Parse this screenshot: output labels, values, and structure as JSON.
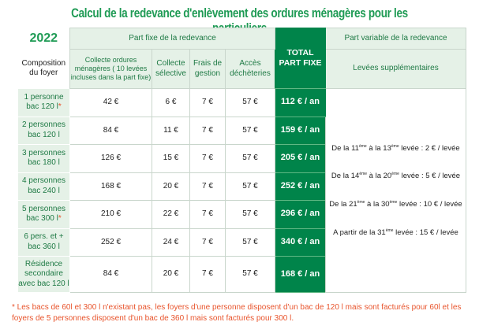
{
  "title": "Calcul de la redevance d'enlèvement des ordures ménagères pour les particuliers",
  "year": "2022",
  "headers": {
    "composition": "Composition du foyer",
    "part_fixe": "Part fixe de la redevance",
    "collecte_om": "Collecte ordures ménagères ( 10 levées incluses dans la part fixe)",
    "collecte_selective": "Collecte sélective",
    "frais_gestion": "Frais de gestion",
    "acces_decheteries": "Accès déchèteries",
    "total": "TOTAL PART FIXE",
    "part_variable": "Part variable de la redevance",
    "levees": "Levées supplémentaires"
  },
  "rows": [
    {
      "label": "1 personne bac 120 l",
      "star": "*",
      "om": "42 €",
      "sel": "6 €",
      "frais": "7 €",
      "acces": "57 €",
      "total": "112 € / an"
    },
    {
      "label": "2 personnes bac 120 l",
      "star": "",
      "om": "84 €",
      "sel": "11 €",
      "frais": "7 €",
      "acces": "57 €",
      "total": "159 € / an"
    },
    {
      "label": "3 personnes bac 180 l",
      "star": "",
      "om": "126 €",
      "sel": "15 €",
      "frais": "7 €",
      "acces": "57 €",
      "total": "205 € / an"
    },
    {
      "label": "4 personnes bac 240 l",
      "star": "",
      "om": "168 €",
      "sel": "20 €",
      "frais": "7 €",
      "acces": "57 €",
      "total": "252 € / an"
    },
    {
      "label": "5 personnes bac 300 l",
      "star": "*",
      "om": "210 €",
      "sel": "22 €",
      "frais": "7 €",
      "acces": "57 €",
      "total": "296 € / an"
    },
    {
      "label": "6 pers. et + bac 360 l",
      "star": "",
      "om": "252 €",
      "sel": "24 €",
      "frais": "7 €",
      "acces": "57 €",
      "total": "340 € / an"
    },
    {
      "label": "Résidence secondaire avec bac 120 l",
      "star": "",
      "om": "84 €",
      "sel": "20 €",
      "frais": "7 €",
      "acces": "57 €",
      "total": "168 € / an"
    }
  ],
  "variable": [
    {
      "a": "De la 11",
      "s1": "ème",
      "b": " à la 13",
      "s2": "ème",
      "c": " levée : 2 € / levée"
    },
    {
      "a": "De la 14",
      "s1": "ème",
      "b": " à la 20",
      "s2": "ème",
      "c": " levée : 5 € / levée"
    },
    {
      "a": "De la 21",
      "s1": "ème",
      "b": " à la 30",
      "s2": "ème",
      "c": " levée : 10 € / levée"
    },
    {
      "a": "A partir de la  31",
      "s1": "ème",
      "b": "",
      "s2": "",
      "c": " levée : 15 € / levée"
    }
  ],
  "footnote": "* Les bacs de 60l et 300 l n'existant pas, les foyers d'une personne disposent d'un bac de 120 l mais sont facturés pour 60l et les foyers de 5 personnes disposent d'un bac de 360 l mais sont facturés pour 300 l.",
  "colors": {
    "accent": "#1f9b55",
    "total_bg": "#00844a",
    "header_bg": "#e5f1e7",
    "footnote": "#e8542c"
  }
}
